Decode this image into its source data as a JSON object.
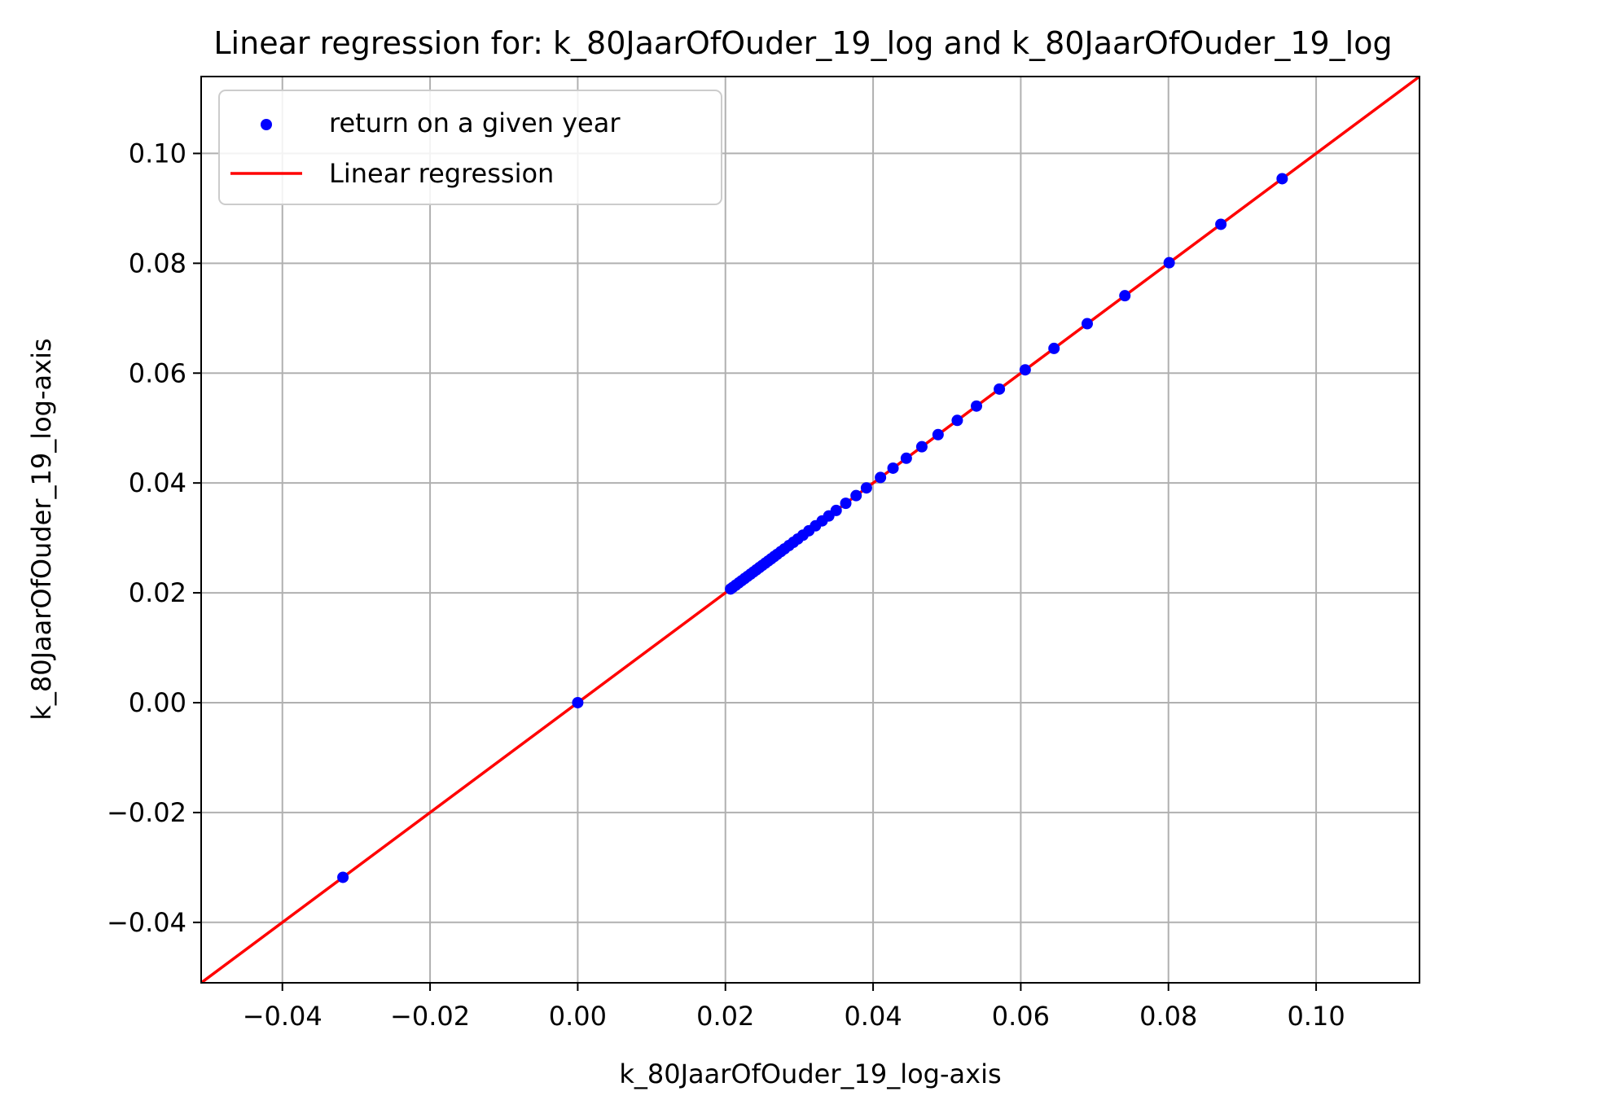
{
  "chart_data": {
    "type": "scatter",
    "title": "Linear regression for: k_80JaarOfOuder_19_log and k_80JaarOfOuder_19_log",
    "xlabel": "k_80JaarOfOuder_19_log-axis",
    "ylabel": "k_80JaarOfOuder_19_log-axis",
    "xlim": [
      -0.051,
      0.114
    ],
    "ylim": [
      -0.051,
      0.114
    ],
    "xticks": [
      -0.04,
      -0.02,
      0.0,
      0.02,
      0.04,
      0.06,
      0.08,
      0.1
    ],
    "yticks": [
      -0.04,
      -0.02,
      0.0,
      0.02,
      0.04,
      0.06,
      0.08,
      0.1
    ],
    "xtick_labels": [
      "−0.04",
      "−0.02",
      "0.00",
      "0.02",
      "0.04",
      "0.06",
      "0.08",
      "0.10"
    ],
    "ytick_labels": [
      "−0.04",
      "−0.02",
      "0.00",
      "0.02",
      "0.04",
      "0.06",
      "0.08",
      "0.10"
    ],
    "grid": true,
    "legend_position": "top-left",
    "series": [
      {
        "name": "return on a given year",
        "kind": "scatter",
        "color": "#0000ff",
        "x": [
          -0.0318,
          0.0,
          0.0207,
          0.021,
          0.0214,
          0.0218,
          0.0222,
          0.0226,
          0.023,
          0.0234,
          0.0238,
          0.0242,
          0.0246,
          0.025,
          0.0254,
          0.0258,
          0.0262,
          0.0266,
          0.027,
          0.0275,
          0.028,
          0.0286,
          0.0292,
          0.0298,
          0.0305,
          0.0313,
          0.0322,
          0.0331,
          0.034,
          0.035,
          0.0363,
          0.0377,
          0.0391,
          0.041,
          0.0427,
          0.0445,
          0.0466,
          0.0488,
          0.0514,
          0.054,
          0.0571,
          0.0606,
          0.0645,
          0.069,
          0.0741,
          0.0801,
          0.0871,
          0.0954
        ],
        "y": [
          -0.0318,
          0.0,
          0.0207,
          0.021,
          0.0214,
          0.0218,
          0.0222,
          0.0226,
          0.023,
          0.0234,
          0.0238,
          0.0242,
          0.0246,
          0.025,
          0.0254,
          0.0258,
          0.0262,
          0.0266,
          0.027,
          0.0275,
          0.028,
          0.0286,
          0.0292,
          0.0298,
          0.0305,
          0.0313,
          0.0322,
          0.0331,
          0.034,
          0.035,
          0.0363,
          0.0377,
          0.0391,
          0.041,
          0.0427,
          0.0445,
          0.0466,
          0.0488,
          0.0514,
          0.054,
          0.0571,
          0.0606,
          0.0645,
          0.069,
          0.0741,
          0.0801,
          0.0871,
          0.0954
        ]
      },
      {
        "name": "Linear regression",
        "kind": "line",
        "color": "#ff0000",
        "slope": 1.0,
        "intercept": 0.0
      }
    ]
  }
}
